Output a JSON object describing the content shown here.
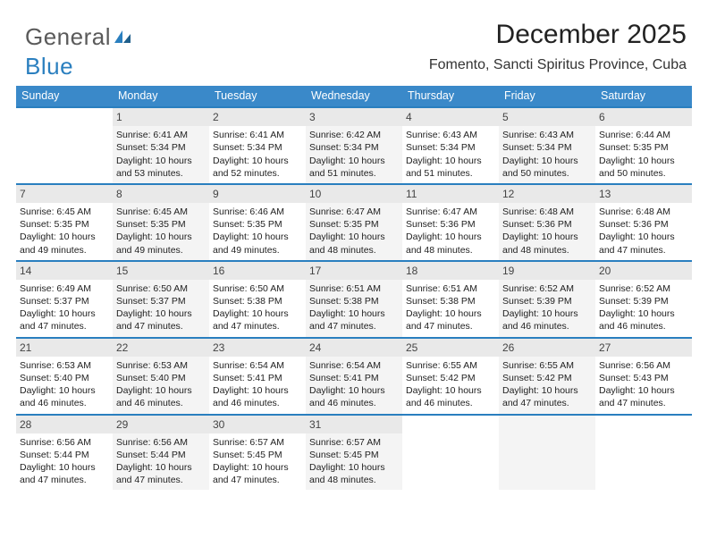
{
  "brand": {
    "word1": "General",
    "word2": "Blue"
  },
  "header": {
    "title": "December 2025",
    "location": "Fomento, Sancti Spiritus Province, Cuba"
  },
  "colors": {
    "header_bg": "#3a89c9",
    "rule": "#2a7fbf",
    "daynum_bg": "#e9e9e9",
    "alt_col_bg": "#f4f4f4",
    "text": "#222222"
  },
  "weekdays": [
    "Sunday",
    "Monday",
    "Tuesday",
    "Wednesday",
    "Thursday",
    "Friday",
    "Saturday"
  ],
  "first_weekday_index": 1,
  "days": [
    {
      "n": 1,
      "sunrise": "6:41 AM",
      "sunset": "5:34 PM",
      "daylight": "10 hours and 53 minutes."
    },
    {
      "n": 2,
      "sunrise": "6:41 AM",
      "sunset": "5:34 PM",
      "daylight": "10 hours and 52 minutes."
    },
    {
      "n": 3,
      "sunrise": "6:42 AM",
      "sunset": "5:34 PM",
      "daylight": "10 hours and 51 minutes."
    },
    {
      "n": 4,
      "sunrise": "6:43 AM",
      "sunset": "5:34 PM",
      "daylight": "10 hours and 51 minutes."
    },
    {
      "n": 5,
      "sunrise": "6:43 AM",
      "sunset": "5:34 PM",
      "daylight": "10 hours and 50 minutes."
    },
    {
      "n": 6,
      "sunrise": "6:44 AM",
      "sunset": "5:35 PM",
      "daylight": "10 hours and 50 minutes."
    },
    {
      "n": 7,
      "sunrise": "6:45 AM",
      "sunset": "5:35 PM",
      "daylight": "10 hours and 49 minutes."
    },
    {
      "n": 8,
      "sunrise": "6:45 AM",
      "sunset": "5:35 PM",
      "daylight": "10 hours and 49 minutes."
    },
    {
      "n": 9,
      "sunrise": "6:46 AM",
      "sunset": "5:35 PM",
      "daylight": "10 hours and 49 minutes."
    },
    {
      "n": 10,
      "sunrise": "6:47 AM",
      "sunset": "5:35 PM",
      "daylight": "10 hours and 48 minutes."
    },
    {
      "n": 11,
      "sunrise": "6:47 AM",
      "sunset": "5:36 PM",
      "daylight": "10 hours and 48 minutes."
    },
    {
      "n": 12,
      "sunrise": "6:48 AM",
      "sunset": "5:36 PM",
      "daylight": "10 hours and 48 minutes."
    },
    {
      "n": 13,
      "sunrise": "6:48 AM",
      "sunset": "5:36 PM",
      "daylight": "10 hours and 47 minutes."
    },
    {
      "n": 14,
      "sunrise": "6:49 AM",
      "sunset": "5:37 PM",
      "daylight": "10 hours and 47 minutes."
    },
    {
      "n": 15,
      "sunrise": "6:50 AM",
      "sunset": "5:37 PM",
      "daylight": "10 hours and 47 minutes."
    },
    {
      "n": 16,
      "sunrise": "6:50 AM",
      "sunset": "5:38 PM",
      "daylight": "10 hours and 47 minutes."
    },
    {
      "n": 17,
      "sunrise": "6:51 AM",
      "sunset": "5:38 PM",
      "daylight": "10 hours and 47 minutes."
    },
    {
      "n": 18,
      "sunrise": "6:51 AM",
      "sunset": "5:38 PM",
      "daylight": "10 hours and 47 minutes."
    },
    {
      "n": 19,
      "sunrise": "6:52 AM",
      "sunset": "5:39 PM",
      "daylight": "10 hours and 46 minutes."
    },
    {
      "n": 20,
      "sunrise": "6:52 AM",
      "sunset": "5:39 PM",
      "daylight": "10 hours and 46 minutes."
    },
    {
      "n": 21,
      "sunrise": "6:53 AM",
      "sunset": "5:40 PM",
      "daylight": "10 hours and 46 minutes."
    },
    {
      "n": 22,
      "sunrise": "6:53 AM",
      "sunset": "5:40 PM",
      "daylight": "10 hours and 46 minutes."
    },
    {
      "n": 23,
      "sunrise": "6:54 AM",
      "sunset": "5:41 PM",
      "daylight": "10 hours and 46 minutes."
    },
    {
      "n": 24,
      "sunrise": "6:54 AM",
      "sunset": "5:41 PM",
      "daylight": "10 hours and 46 minutes."
    },
    {
      "n": 25,
      "sunrise": "6:55 AM",
      "sunset": "5:42 PM",
      "daylight": "10 hours and 46 minutes."
    },
    {
      "n": 26,
      "sunrise": "6:55 AM",
      "sunset": "5:42 PM",
      "daylight": "10 hours and 47 minutes."
    },
    {
      "n": 27,
      "sunrise": "6:56 AM",
      "sunset": "5:43 PM",
      "daylight": "10 hours and 47 minutes."
    },
    {
      "n": 28,
      "sunrise": "6:56 AM",
      "sunset": "5:44 PM",
      "daylight": "10 hours and 47 minutes."
    },
    {
      "n": 29,
      "sunrise": "6:56 AM",
      "sunset": "5:44 PM",
      "daylight": "10 hours and 47 minutes."
    },
    {
      "n": 30,
      "sunrise": "6:57 AM",
      "sunset": "5:45 PM",
      "daylight": "10 hours and 47 minutes."
    },
    {
      "n": 31,
      "sunrise": "6:57 AM",
      "sunset": "5:45 PM",
      "daylight": "10 hours and 48 minutes."
    }
  ],
  "labels": {
    "sunrise_prefix": "Sunrise: ",
    "sunset_prefix": "Sunset: ",
    "daylight_prefix": "Daylight: "
  }
}
